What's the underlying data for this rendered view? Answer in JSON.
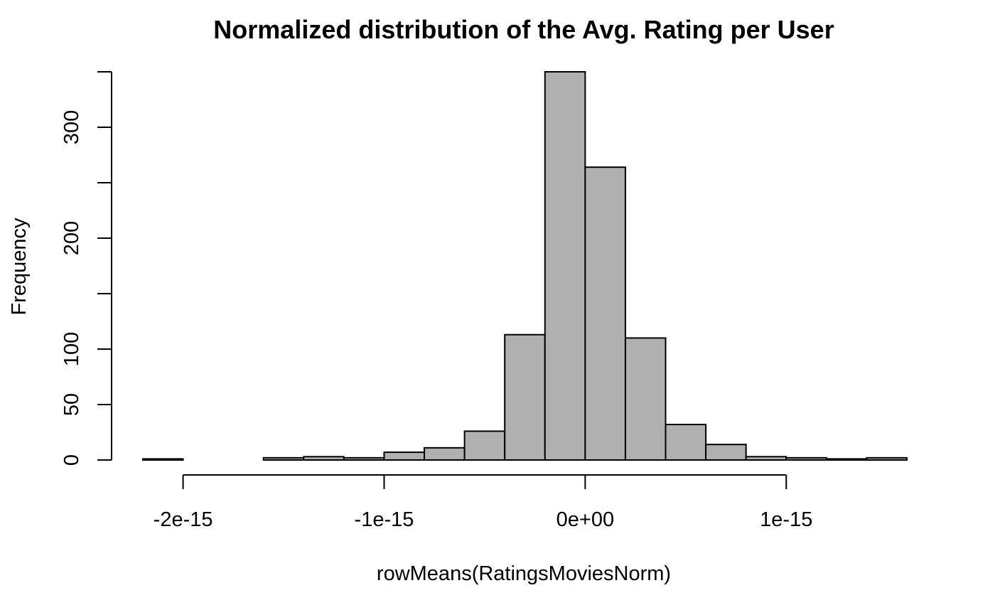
{
  "chart_data": {
    "type": "histogram",
    "title": "Normalized distribution of the Avg. Rating per User",
    "xlabel": "rowMeans(RatingsMoviesNorm)",
    "ylabel": "Frequency",
    "bins": [
      {
        "start": -2.2e-15,
        "end": -2e-15,
        "count": 1
      },
      {
        "start": -2e-15,
        "end": -1.8e-15,
        "count": 0
      },
      {
        "start": -1.8e-15,
        "end": -1.6e-15,
        "count": 0
      },
      {
        "start": -1.6e-15,
        "end": -1.4e-15,
        "count": 2
      },
      {
        "start": -1.4e-15,
        "end": -1.2e-15,
        "count": 3
      },
      {
        "start": -1.2e-15,
        "end": -1e-15,
        "count": 2
      },
      {
        "start": -1e-15,
        "end": -8e-16,
        "count": 7
      },
      {
        "start": -8e-16,
        "end": -6e-16,
        "count": 11
      },
      {
        "start": -6e-16,
        "end": -4e-16,
        "count": 26
      },
      {
        "start": -4e-16,
        "end": -2e-16,
        "count": 113
      },
      {
        "start": -2e-16,
        "end": 0.0,
        "count": 350
      },
      {
        "start": 0.0,
        "end": 2e-16,
        "count": 264
      },
      {
        "start": 2e-16,
        "end": 4e-16,
        "count": 110
      },
      {
        "start": 4e-16,
        "end": 6e-16,
        "count": 32
      },
      {
        "start": 6e-16,
        "end": 8e-16,
        "count": 14
      },
      {
        "start": 8e-16,
        "end": 1e-15,
        "count": 3
      },
      {
        "start": 1e-15,
        "end": 1.2e-15,
        "count": 2
      },
      {
        "start": 1.2e-15,
        "end": 1.4e-15,
        "count": 1
      },
      {
        "start": 1.4e-15,
        "end": 1.6e-15,
        "count": 2
      }
    ],
    "xticks": [
      {
        "value": -2e-15,
        "label": "-2e-15"
      },
      {
        "value": -1e-15,
        "label": "-1e-15"
      },
      {
        "value": 0,
        "label": "0e+00"
      },
      {
        "value": 1e-15,
        "label": "1e-15"
      }
    ],
    "yticks": [
      {
        "value": 0,
        "label": "0"
      },
      {
        "value": 50,
        "label": "50"
      },
      {
        "value": 100,
        "label": "100"
      },
      {
        "value": 150,
        "label": ""
      },
      {
        "value": 200,
        "label": "200"
      },
      {
        "value": 250,
        "label": ""
      },
      {
        "value": 300,
        "label": "300"
      },
      {
        "value": 350,
        "label": ""
      }
    ],
    "xlim": [
      -2.2e-15,
      1.6e-15
    ],
    "ylim": [
      0,
      350
    ],
    "bar_fill": "#b0b0b0",
    "bar_stroke": "#000000",
    "grid": false
  }
}
